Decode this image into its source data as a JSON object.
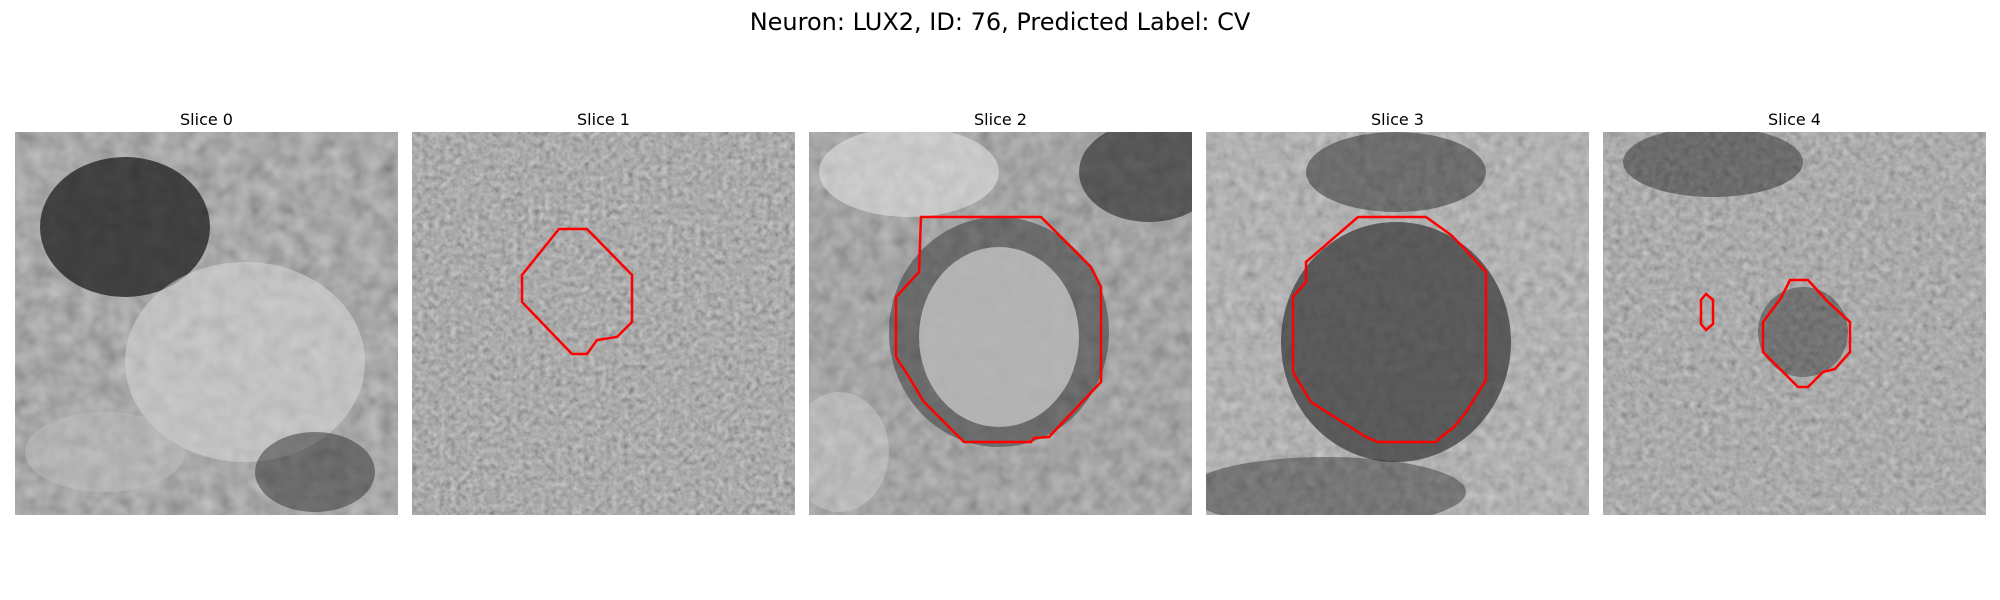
{
  "figure": {
    "title": "Neuron: LUX2, ID: 76, Predicted Label: CV",
    "panels": [
      {
        "title": "Slice 0",
        "has_contour": false
      },
      {
        "title": "Slice 1",
        "has_contour": true
      },
      {
        "title": "Slice 2",
        "has_contour": true
      },
      {
        "title": "Slice 3",
        "has_contour": true
      },
      {
        "title": "Slice 4",
        "has_contour": true
      }
    ],
    "contour_color": "#ff0000",
    "colormap": "grayscale"
  }
}
